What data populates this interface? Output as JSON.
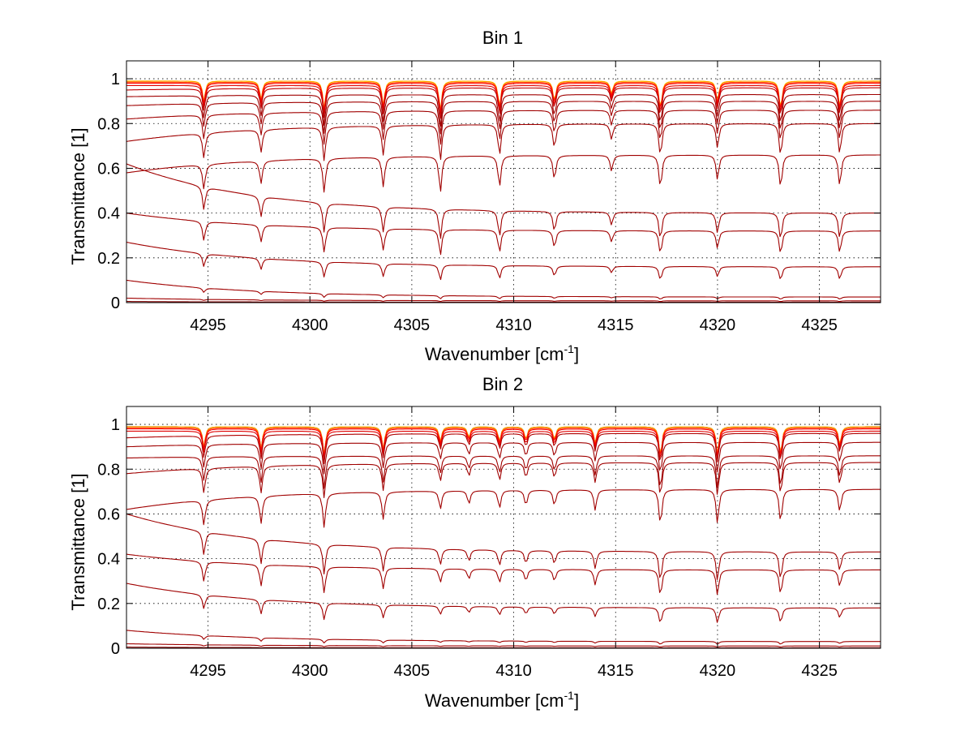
{
  "chart_data": [
    {
      "type": "line",
      "title": "Bin 1",
      "xlabel": "Wavenumber [cm",
      "xlabel_sup": "-1",
      "xlabel_end": "]",
      "ylabel": "Transmittance [1]",
      "xlim": [
        4291,
        4328
      ],
      "ylim": [
        0,
        1.08
      ],
      "xticks": [
        4295,
        4300,
        4305,
        4310,
        4315,
        4320,
        4325
      ],
      "yticks": [
        0,
        0.2,
        0.4,
        0.6,
        0.8,
        1
      ],
      "xtick_labels": [
        "4295",
        "4300",
        "4305",
        "4310",
        "4315",
        "4320",
        "4325"
      ],
      "ytick_labels": [
        "0",
        "0.2",
        "0.4",
        "0.6",
        "0.8",
        "1"
      ],
      "grid": true,
      "absorption_lines": [
        {
          "x": 4294.8,
          "depth": 0.55
        },
        {
          "x": 4297.6,
          "depth": 0.5
        },
        {
          "x": 4300.7,
          "depth": 0.75
        },
        {
          "x": 4303.6,
          "depth": 0.65
        },
        {
          "x": 4306.4,
          "depth": 0.8
        },
        {
          "x": 4309.3,
          "depth": 0.7
        },
        {
          "x": 4312.0,
          "depth": 0.55
        },
        {
          "x": 4314.8,
          "depth": 0.35
        },
        {
          "x": 4317.2,
          "depth": 0.75
        },
        {
          "x": 4320.0,
          "depth": 0.55
        },
        {
          "x": 4323.1,
          "depth": 0.75
        },
        {
          "x": 4326.0,
          "depth": 0.7
        }
      ],
      "series": [
        {
          "baseline_start": 0.99,
          "baseline_end": 0.99,
          "color": "#ffff00"
        },
        {
          "baseline_start": 0.99,
          "baseline_end": 0.99,
          "color": "#ffa500"
        },
        {
          "baseline_start": 0.985,
          "baseline_end": 0.985,
          "color": "#ff4000"
        },
        {
          "baseline_start": 0.98,
          "baseline_end": 0.98,
          "color": "#ff0000"
        },
        {
          "baseline_start": 0.97,
          "baseline_end": 0.97,
          "color": "#e00000"
        },
        {
          "baseline_start": 0.95,
          "baseline_end": 0.96,
          "color": "#c00000"
        },
        {
          "baseline_start": 0.92,
          "baseline_end": 0.93,
          "color": "#a00000"
        },
        {
          "baseline_start": 0.88,
          "baseline_end": 0.9,
          "color": "#a00000"
        },
        {
          "baseline_start": 0.82,
          "baseline_end": 0.86,
          "color": "#a00000"
        },
        {
          "baseline_start": 0.72,
          "baseline_end": 0.8,
          "color": "#a00000"
        },
        {
          "baseline_start": 0.58,
          "baseline_end": 0.66,
          "color": "#a00000"
        },
        {
          "baseline_start": 0.62,
          "baseline_end": 0.4,
          "color": "#a00000"
        },
        {
          "baseline_start": 0.4,
          "baseline_end": 0.32,
          "color": "#a00000"
        },
        {
          "baseline_start": 0.27,
          "baseline_end": 0.16,
          "color": "#a00000"
        },
        {
          "baseline_start": 0.1,
          "baseline_end": 0.025,
          "color": "#a00000"
        },
        {
          "baseline_start": 0.02,
          "baseline_end": 0.008,
          "color": "#a00000"
        },
        {
          "baseline_start": 0.005,
          "baseline_end": 0.002,
          "color": "#800000"
        }
      ]
    },
    {
      "type": "line",
      "title": "Bin 2",
      "xlabel": "Wavenumber [cm",
      "xlabel_sup": "-1",
      "xlabel_end": "]",
      "ylabel": "Transmittance [1]",
      "xlim": [
        4291,
        4328
      ],
      "ylim": [
        0,
        1.08
      ],
      "xticks": [
        4295,
        4300,
        4305,
        4310,
        4315,
        4320,
        4325
      ],
      "yticks": [
        0,
        0.2,
        0.4,
        0.6,
        0.8,
        1
      ],
      "xtick_labels": [
        "4295",
        "4300",
        "4305",
        "4310",
        "4315",
        "4320",
        "4325"
      ],
      "ytick_labels": [
        "0",
        "0.2",
        "0.4",
        "0.6",
        "0.8",
        "1"
      ],
      "grid": true,
      "absorption_lines": [
        {
          "x": 4294.8,
          "depth": 0.55
        },
        {
          "x": 4297.6,
          "depth": 0.6
        },
        {
          "x": 4300.7,
          "depth": 0.75
        },
        {
          "x": 4303.6,
          "depth": 0.6
        },
        {
          "x": 4306.4,
          "depth": 0.4
        },
        {
          "x": 4307.8,
          "depth": 0.3
        },
        {
          "x": 4309.3,
          "depth": 0.4
        },
        {
          "x": 4310.6,
          "depth": 0.35
        },
        {
          "x": 4312.0,
          "depth": 0.35
        },
        {
          "x": 4314.0,
          "depth": 0.45
        },
        {
          "x": 4317.2,
          "depth": 0.8
        },
        {
          "x": 4320.0,
          "depth": 0.75
        },
        {
          "x": 4323.1,
          "depth": 0.75
        },
        {
          "x": 4326.0,
          "depth": 0.5
        }
      ],
      "series": [
        {
          "baseline_start": 0.99,
          "baseline_end": 0.99,
          "color": "#0000ff"
        },
        {
          "baseline_start": 0.99,
          "baseline_end": 0.99,
          "color": "#ffff00"
        },
        {
          "baseline_start": 0.99,
          "baseline_end": 0.99,
          "color": "#ffa500"
        },
        {
          "baseline_start": 0.985,
          "baseline_end": 0.985,
          "color": "#ff4000"
        },
        {
          "baseline_start": 0.98,
          "baseline_end": 0.98,
          "color": "#ff0000"
        },
        {
          "baseline_start": 0.97,
          "baseline_end": 0.97,
          "color": "#e00000"
        },
        {
          "baseline_start": 0.94,
          "baseline_end": 0.96,
          "color": "#b00000"
        },
        {
          "baseline_start": 0.9,
          "baseline_end": 0.92,
          "color": "#a00000"
        },
        {
          "baseline_start": 0.85,
          "baseline_end": 0.86,
          "color": "#a00000"
        },
        {
          "baseline_start": 0.78,
          "baseline_end": 0.83,
          "color": "#a00000"
        },
        {
          "baseline_start": 0.62,
          "baseline_end": 0.71,
          "color": "#a00000"
        },
        {
          "baseline_start": 0.6,
          "baseline_end": 0.43,
          "color": "#a00000"
        },
        {
          "baseline_start": 0.42,
          "baseline_end": 0.35,
          "color": "#a00000"
        },
        {
          "baseline_start": 0.29,
          "baseline_end": 0.18,
          "color": "#a00000"
        },
        {
          "baseline_start": 0.08,
          "baseline_end": 0.03,
          "color": "#a00000"
        },
        {
          "baseline_start": 0.02,
          "baseline_end": 0.01,
          "color": "#a00000"
        },
        {
          "baseline_start": 0.005,
          "baseline_end": 0.002,
          "color": "#800000"
        }
      ]
    }
  ]
}
